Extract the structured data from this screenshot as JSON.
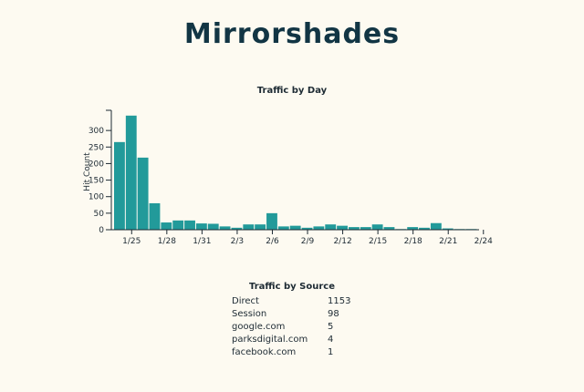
{
  "brand": {
    "title": "Mirrorshades"
  },
  "colors": {
    "bar": "#229a9a",
    "axis": "#1d2a33",
    "background": "#fdfaf1"
  },
  "chart_data": {
    "type": "bar",
    "title": "Traffic by Day",
    "ylabel": "Hit Count",
    "xlabel": "",
    "ylim": [
      0,
      350
    ],
    "yticks": [
      0,
      50,
      100,
      150,
      200,
      250,
      300
    ],
    "tick_labels": [
      "1/25",
      "1/28",
      "1/31",
      "2/3",
      "2/6",
      "2/9",
      "2/12",
      "2/15",
      "2/18",
      "2/21",
      "2/24"
    ],
    "categories": [
      "1/24",
      "1/25",
      "1/26",
      "1/27",
      "1/28",
      "1/29",
      "1/30",
      "1/31",
      "2/1",
      "2/2",
      "2/3",
      "2/4",
      "2/5",
      "2/6",
      "2/7",
      "2/8",
      "2/9",
      "2/10",
      "2/11",
      "2/12",
      "2/13",
      "2/14",
      "2/15",
      "2/16",
      "2/17",
      "2/18",
      "2/19",
      "2/20",
      "2/21",
      "2/22",
      "2/23",
      "2/24"
    ],
    "values": [
      265,
      345,
      218,
      80,
      22,
      28,
      28,
      19,
      18,
      10,
      6,
      16,
      16,
      50,
      10,
      12,
      6,
      10,
      16,
      12,
      8,
      8,
      16,
      8,
      2,
      8,
      6,
      20,
      4,
      2,
      2,
      0
    ]
  },
  "sources": {
    "title": "Traffic by Source",
    "rows": [
      {
        "name": "Direct",
        "count": "1153"
      },
      {
        "name": "Session",
        "count": "98"
      },
      {
        "name": "google.com",
        "count": "5"
      },
      {
        "name": "parksdigital.com",
        "count": "4"
      },
      {
        "name": "facebook.com",
        "count": "1"
      }
    ]
  }
}
